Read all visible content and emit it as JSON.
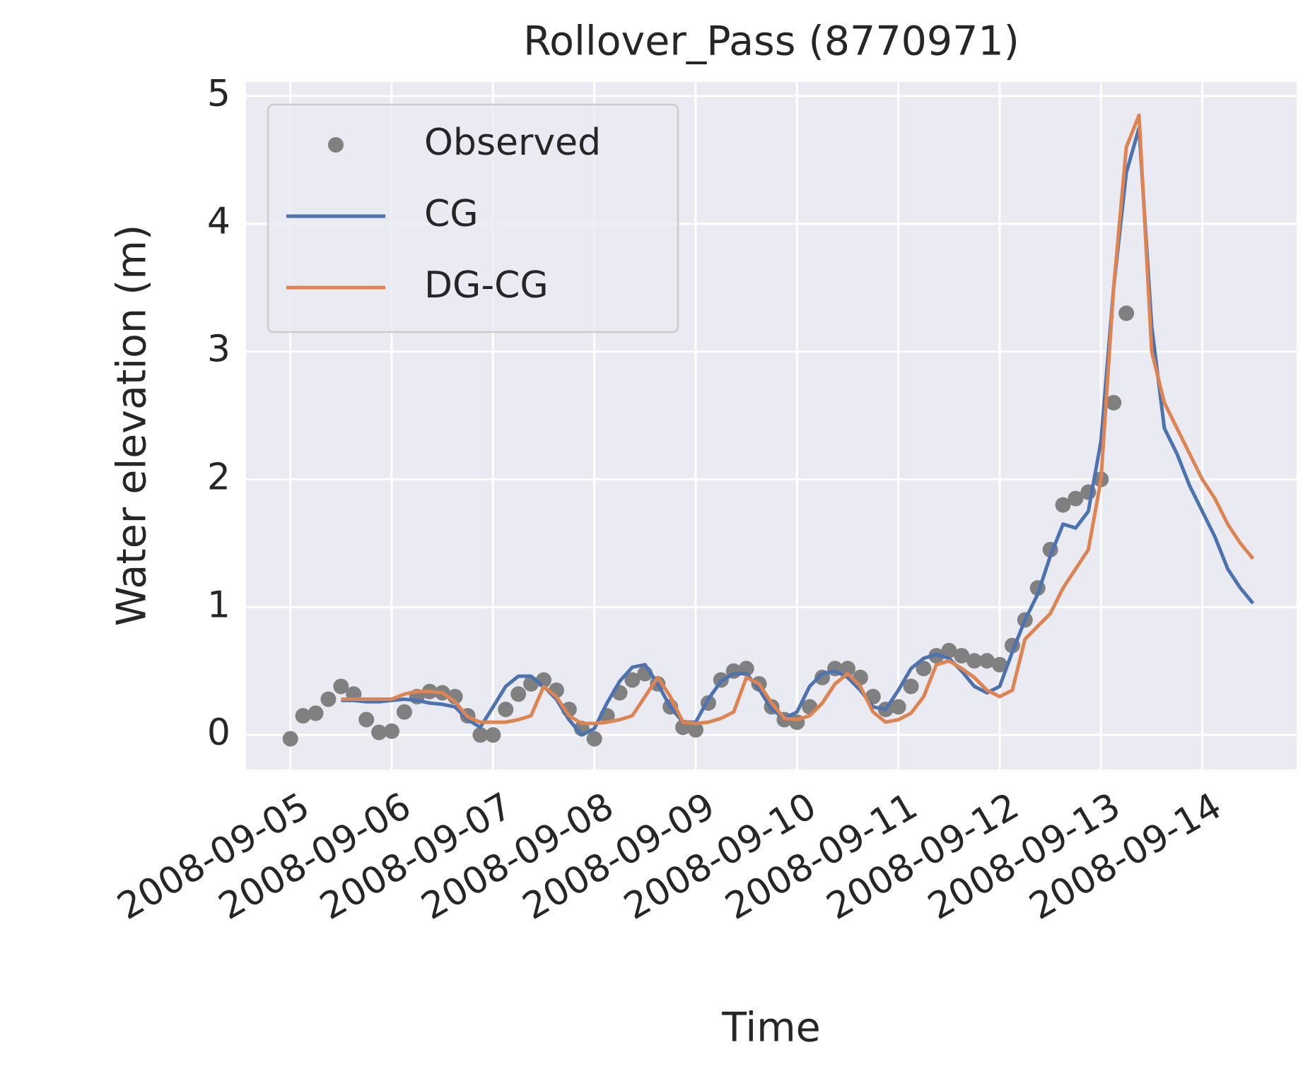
{
  "chart_data": {
    "type": "line",
    "title": "Rollover_Pass (8770971)",
    "x_label": "Time",
    "y_label": "Water elevation (m)",
    "x": [
      "2008-09-05T00:00",
      "2008-09-05T03:00",
      "2008-09-05T06:00",
      "2008-09-05T09:00",
      "2008-09-05T12:00",
      "2008-09-05T15:00",
      "2008-09-05T18:00",
      "2008-09-05T21:00",
      "2008-09-06T00:00",
      "2008-09-06T03:00",
      "2008-09-06T06:00",
      "2008-09-06T09:00",
      "2008-09-06T12:00",
      "2008-09-06T15:00",
      "2008-09-06T18:00",
      "2008-09-06T21:00",
      "2008-09-07T00:00",
      "2008-09-07T03:00",
      "2008-09-07T06:00",
      "2008-09-07T09:00",
      "2008-09-07T12:00",
      "2008-09-07T15:00",
      "2008-09-07T18:00",
      "2008-09-07T21:00",
      "2008-09-08T00:00",
      "2008-09-08T03:00",
      "2008-09-08T06:00",
      "2008-09-08T09:00",
      "2008-09-08T12:00",
      "2008-09-08T15:00",
      "2008-09-08T18:00",
      "2008-09-08T21:00",
      "2008-09-09T00:00",
      "2008-09-09T03:00",
      "2008-09-09T06:00",
      "2008-09-09T09:00",
      "2008-09-09T12:00",
      "2008-09-09T15:00",
      "2008-09-09T18:00",
      "2008-09-09T21:00",
      "2008-09-10T00:00",
      "2008-09-10T03:00",
      "2008-09-10T06:00",
      "2008-09-10T09:00",
      "2008-09-10T12:00",
      "2008-09-10T15:00",
      "2008-09-10T18:00",
      "2008-09-10T21:00",
      "2008-09-11T00:00",
      "2008-09-11T03:00",
      "2008-09-11T06:00",
      "2008-09-11T09:00",
      "2008-09-11T12:00",
      "2008-09-11T15:00",
      "2008-09-11T18:00",
      "2008-09-11T21:00",
      "2008-09-12T00:00",
      "2008-09-12T03:00",
      "2008-09-12T06:00",
      "2008-09-12T09:00",
      "2008-09-12T12:00",
      "2008-09-12T15:00",
      "2008-09-12T18:00",
      "2008-09-12T21:00",
      "2008-09-13T00:00",
      "2008-09-13T03:00",
      "2008-09-13T06:00",
      "2008-09-13T09:00",
      "2008-09-13T12:00",
      "2008-09-13T15:00",
      "2008-09-13T18:00",
      "2008-09-13T21:00",
      "2008-09-14T00:00",
      "2008-09-14T03:00",
      "2008-09-14T06:00",
      "2008-09-14T09:00",
      "2008-09-14T12:00"
    ],
    "series": [
      {
        "name": "Observed",
        "style": "markers",
        "color": "#808080",
        "values": [
          -0.03,
          0.15,
          0.17,
          0.28,
          0.38,
          0.32,
          0.12,
          0.02,
          0.03,
          0.18,
          0.3,
          0.34,
          0.33,
          0.3,
          0.15,
          0.0,
          0.0,
          0.2,
          0.32,
          0.4,
          0.43,
          0.35,
          0.2,
          0.05,
          -0.03,
          0.15,
          0.33,
          0.43,
          0.48,
          0.4,
          0.22,
          0.06,
          0.04,
          0.25,
          0.43,
          0.5,
          0.52,
          0.4,
          0.22,
          0.12,
          0.1,
          0.22,
          0.45,
          0.52,
          0.52,
          0.45,
          0.3,
          0.2,
          0.22,
          0.38,
          0.52,
          0.62,
          0.66,
          0.62,
          0.58,
          0.58,
          0.55,
          0.7,
          0.9,
          1.15,
          1.45,
          1.8,
          1.85,
          1.9,
          2.0,
          2.6,
          3.3,
          null,
          null,
          null,
          null,
          null,
          null,
          null,
          null,
          null,
          null
        ]
      },
      {
        "name": "CG",
        "style": "line",
        "color": "#4c72b0",
        "values": [
          null,
          null,
          null,
          null,
          0.27,
          0.27,
          0.26,
          0.26,
          0.27,
          0.28,
          0.27,
          0.25,
          0.24,
          0.22,
          0.12,
          0.06,
          0.22,
          0.38,
          0.46,
          0.46,
          0.38,
          0.28,
          0.12,
          0.0,
          0.05,
          0.25,
          0.42,
          0.53,
          0.55,
          0.4,
          0.22,
          0.1,
          0.1,
          0.28,
          0.42,
          0.48,
          0.48,
          0.36,
          0.2,
          0.13,
          0.18,
          0.38,
          0.48,
          0.5,
          0.45,
          0.35,
          0.22,
          0.2,
          0.35,
          0.52,
          0.6,
          0.63,
          0.6,
          0.5,
          0.38,
          0.33,
          0.38,
          0.65,
          0.9,
          1.1,
          1.4,
          1.65,
          1.62,
          1.75,
          2.3,
          3.5,
          4.4,
          4.75,
          3.2,
          2.4,
          2.2,
          1.95,
          1.75,
          1.55,
          1.3,
          1.15,
          1.03
        ]
      },
      {
        "name": "DG-CG",
        "style": "line",
        "color": "#dd8452",
        "values": [
          null,
          null,
          null,
          null,
          0.28,
          0.28,
          0.28,
          0.28,
          0.28,
          0.32,
          0.34,
          0.34,
          0.33,
          0.26,
          0.14,
          0.1,
          0.1,
          0.1,
          0.12,
          0.15,
          0.38,
          0.3,
          0.15,
          0.09,
          0.09,
          0.1,
          0.12,
          0.15,
          0.3,
          0.45,
          0.3,
          0.1,
          0.09,
          0.1,
          0.13,
          0.18,
          0.45,
          0.4,
          0.25,
          0.13,
          0.12,
          0.15,
          0.25,
          0.4,
          0.48,
          0.38,
          0.18,
          0.1,
          0.12,
          0.17,
          0.3,
          0.55,
          0.58,
          0.52,
          0.45,
          0.35,
          0.3,
          0.35,
          0.75,
          0.85,
          0.95,
          1.15,
          1.3,
          1.45,
          2.0,
          3.5,
          4.6,
          4.85,
          3.0,
          2.6,
          2.4,
          2.2,
          2.0,
          1.85,
          1.65,
          1.5,
          1.38
        ]
      }
    ],
    "xlim": [
      "2008-09-04T13:30",
      "2008-09-14T22:20"
    ],
    "xticks": [
      "2008-09-05",
      "2008-09-06",
      "2008-09-07",
      "2008-09-08",
      "2008-09-09",
      "2008-09-10",
      "2008-09-11",
      "2008-09-12",
      "2008-09-13",
      "2008-09-14"
    ],
    "ylim": [
      -0.27,
      5.11
    ],
    "yticks": [
      0,
      1,
      2,
      3,
      4,
      5
    ],
    "grid": true,
    "legend": "upper left"
  }
}
